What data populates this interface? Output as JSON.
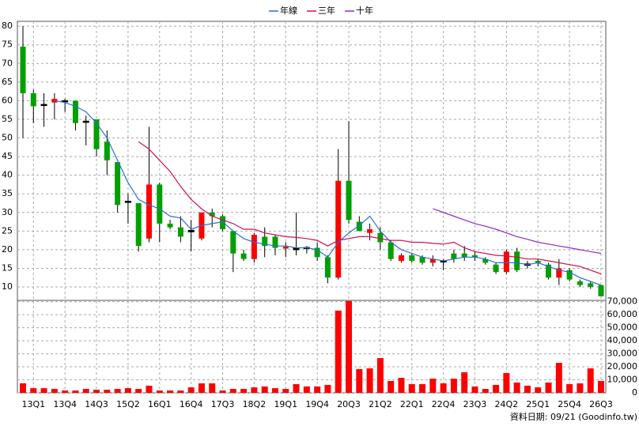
{
  "chart_data": {
    "type": "candlestick",
    "categories": [
      null,
      "13Q1",
      null,
      null,
      "13Q4",
      null,
      null,
      "14Q3",
      null,
      null,
      "15Q2",
      null,
      null,
      "16Q1",
      null,
      null,
      "16Q4",
      null,
      null,
      "17Q3",
      null,
      null,
      "18Q2",
      null,
      null,
      "19Q1",
      null,
      null,
      "19Q4",
      null,
      null,
      "20Q3",
      null,
      null,
      "21Q2",
      null,
      null,
      "22Q1",
      null,
      null,
      "22Q4",
      null,
      null,
      "23Q3",
      null,
      null,
      "24Q2",
      null,
      null,
      "25Q1",
      null,
      null,
      "25Q4",
      null,
      null,
      "26Q3"
    ],
    "open": [
      74.5,
      62,
      59,
      59.5,
      60,
      60,
      54.5,
      55,
      49,
      43.5,
      32.8,
      32.5,
      23,
      37.5,
      27,
      26,
      24.8,
      23,
      30,
      29,
      25,
      19,
      17.5,
      23.5,
      23.5,
      20.3,
      20,
      20.3,
      20.5,
      18,
      12.5,
      38.5,
      27.5,
      24.5,
      24.5,
      22,
      17,
      18.5,
      18,
      16.5,
      17,
      19,
      19,
      18.5,
      17.5,
      16,
      14,
      19.5,
      15.8,
      17,
      16,
      12.5,
      14.5,
      11.5,
      11,
      10.5
    ],
    "high": [
      80,
      63,
      62,
      62,
      60.5,
      60,
      56,
      55,
      52,
      43.5,
      35,
      32.5,
      53,
      38,
      28,
      29,
      28,
      30,
      31,
      29.5,
      25,
      20,
      24.5,
      26,
      24,
      22,
      30,
      21,
      22,
      18.5,
      47,
      54.5,
      29,
      27,
      26,
      22.5,
      19,
      19,
      18.5,
      18.5,
      17.5,
      20,
      21,
      19.5,
      18,
      16.5,
      20,
      20.5,
      17,
      17.5,
      16.5,
      17.5,
      15,
      12,
      11.5,
      10.5
    ],
    "low": [
      50,
      54,
      53,
      55,
      57,
      52,
      48,
      45,
      40,
      30,
      27,
      19.5,
      22,
      22,
      25.5,
      22,
      19.5,
      22.5,
      26,
      25,
      14,
      17,
      16.5,
      18,
      18.5,
      18,
      18.5,
      19,
      17,
      11,
      12,
      27,
      25,
      22.5,
      20,
      17,
      16.5,
      16.5,
      16,
      15.5,
      14.5,
      16.5,
      17,
      17,
      16,
      13.5,
      13.5,
      14,
      15,
      15.5,
      12,
      10.5,
      11.5,
      10,
      9.5,
      7.5
    ],
    "close": [
      62,
      58.5,
      59,
      60.5,
      60,
      54,
      54.5,
      47,
      44,
      32,
      33,
      21,
      37.5,
      27,
      26,
      23.5,
      25.2,
      30,
      29,
      25.5,
      19,
      17.5,
      24,
      21,
      20.5,
      20.8,
      20.4,
      20.6,
      18,
      12.5,
      38.5,
      28,
      25,
      25.5,
      22,
      17.5,
      18.5,
      17,
      16.5,
      17.5,
      17,
      17.5,
      18,
      18,
      16.5,
      14,
      19.5,
      14.5,
      16.2,
      16.5,
      12.5,
      15,
      12,
      10.5,
      10,
      7.5
    ],
    "up_color": "#ff0000",
    "down_color": "#00a000",
    "ylim": [
      6.4,
      81.3
    ],
    "yticks": [
      10,
      15,
      20,
      25,
      30,
      35,
      40,
      45,
      50,
      55,
      60,
      65,
      70,
      75,
      80
    ],
    "series": [
      {
        "name": "年線",
        "color": "#2a6fd6",
        "values": [
          null,
          null,
          null,
          60,
          59.5,
          58.5,
          57,
          54,
          50,
          44,
          38,
          33.5,
          32,
          31,
          29,
          28.5,
          25.5,
          26.5,
          27,
          27.5,
          25,
          23,
          22,
          21.5,
          21,
          21,
          20.5,
          20.5,
          20,
          18,
          22,
          24.5,
          26.5,
          29,
          25,
          22,
          20,
          19,
          18,
          17.5,
          17,
          17.5,
          18,
          18,
          17.5,
          16.5,
          16.5,
          16.5,
          16,
          16.5,
          15.5,
          14.5,
          14,
          12.5,
          11.5,
          10.5
        ]
      },
      {
        "name": "三年",
        "color": "#cc1155",
        "values": [
          null,
          null,
          null,
          null,
          null,
          null,
          null,
          null,
          null,
          null,
          null,
          49,
          47,
          44,
          41,
          37,
          33.5,
          31,
          29,
          28,
          27,
          25.5,
          25.5,
          24.5,
          24,
          23.5,
          23.3,
          23,
          22.5,
          21,
          22.5,
          23,
          23.5,
          23.5,
          23,
          22.5,
          22.5,
          22,
          22,
          21.7,
          21.5,
          22,
          20.5,
          19.5,
          19,
          18.5,
          18.3,
          18,
          17.5,
          17.5,
          17,
          16.5,
          16,
          15.5,
          14.5,
          13.5
        ]
      },
      {
        "name": "十年",
        "color": "#8a2bc9",
        "values": [
          null,
          null,
          null,
          null,
          null,
          null,
          null,
          null,
          null,
          null,
          null,
          null,
          null,
          null,
          null,
          null,
          null,
          null,
          null,
          null,
          null,
          null,
          null,
          null,
          null,
          null,
          null,
          null,
          null,
          null,
          null,
          null,
          null,
          null,
          null,
          null,
          null,
          null,
          null,
          31,
          30,
          29,
          28,
          27,
          26.3,
          25.5,
          24.5,
          23.5,
          22.8,
          22,
          21.5,
          21,
          20.5,
          20,
          19.5,
          19
        ]
      }
    ],
    "volume": {
      "values": [
        7300,
        3600,
        3600,
        3000,
        1800,
        1800,
        3000,
        2400,
        2400,
        3000,
        3600,
        3000,
        5500,
        1800,
        1800,
        1800,
        4200,
        7300,
        7300,
        1800,
        3000,
        3000,
        4200,
        4900,
        3600,
        3000,
        6700,
        4900,
        4900,
        6100,
        63100,
        70500,
        18200,
        18800,
        26700,
        9100,
        11500,
        6700,
        6700,
        10900,
        7300,
        10900,
        15800,
        4900,
        3000,
        6100,
        15200,
        7900,
        5500,
        4200,
        7900,
        23000,
        6700,
        7300,
        18800,
        9100
      ],
      "color": "#ff0000",
      "ylim": [
        0,
        71000
      ],
      "yticks": [
        0,
        {
          "value": 10000,
          "label": "10,000"
        },
        {
          "value": 20000,
          "label": "20,000"
        },
        {
          "value": 30000,
          "label": "30,000"
        },
        {
          "value": 40000,
          "label": "40,000"
        },
        {
          "value": 50000,
          "label": "50,000"
        },
        {
          "value": 60000,
          "label": "60,000"
        },
        {
          "value": 70000,
          "label": "70,000"
        }
      ]
    },
    "grid": true,
    "footnote": "資料日期: 09/21   (Goodinfo.tw)"
  }
}
